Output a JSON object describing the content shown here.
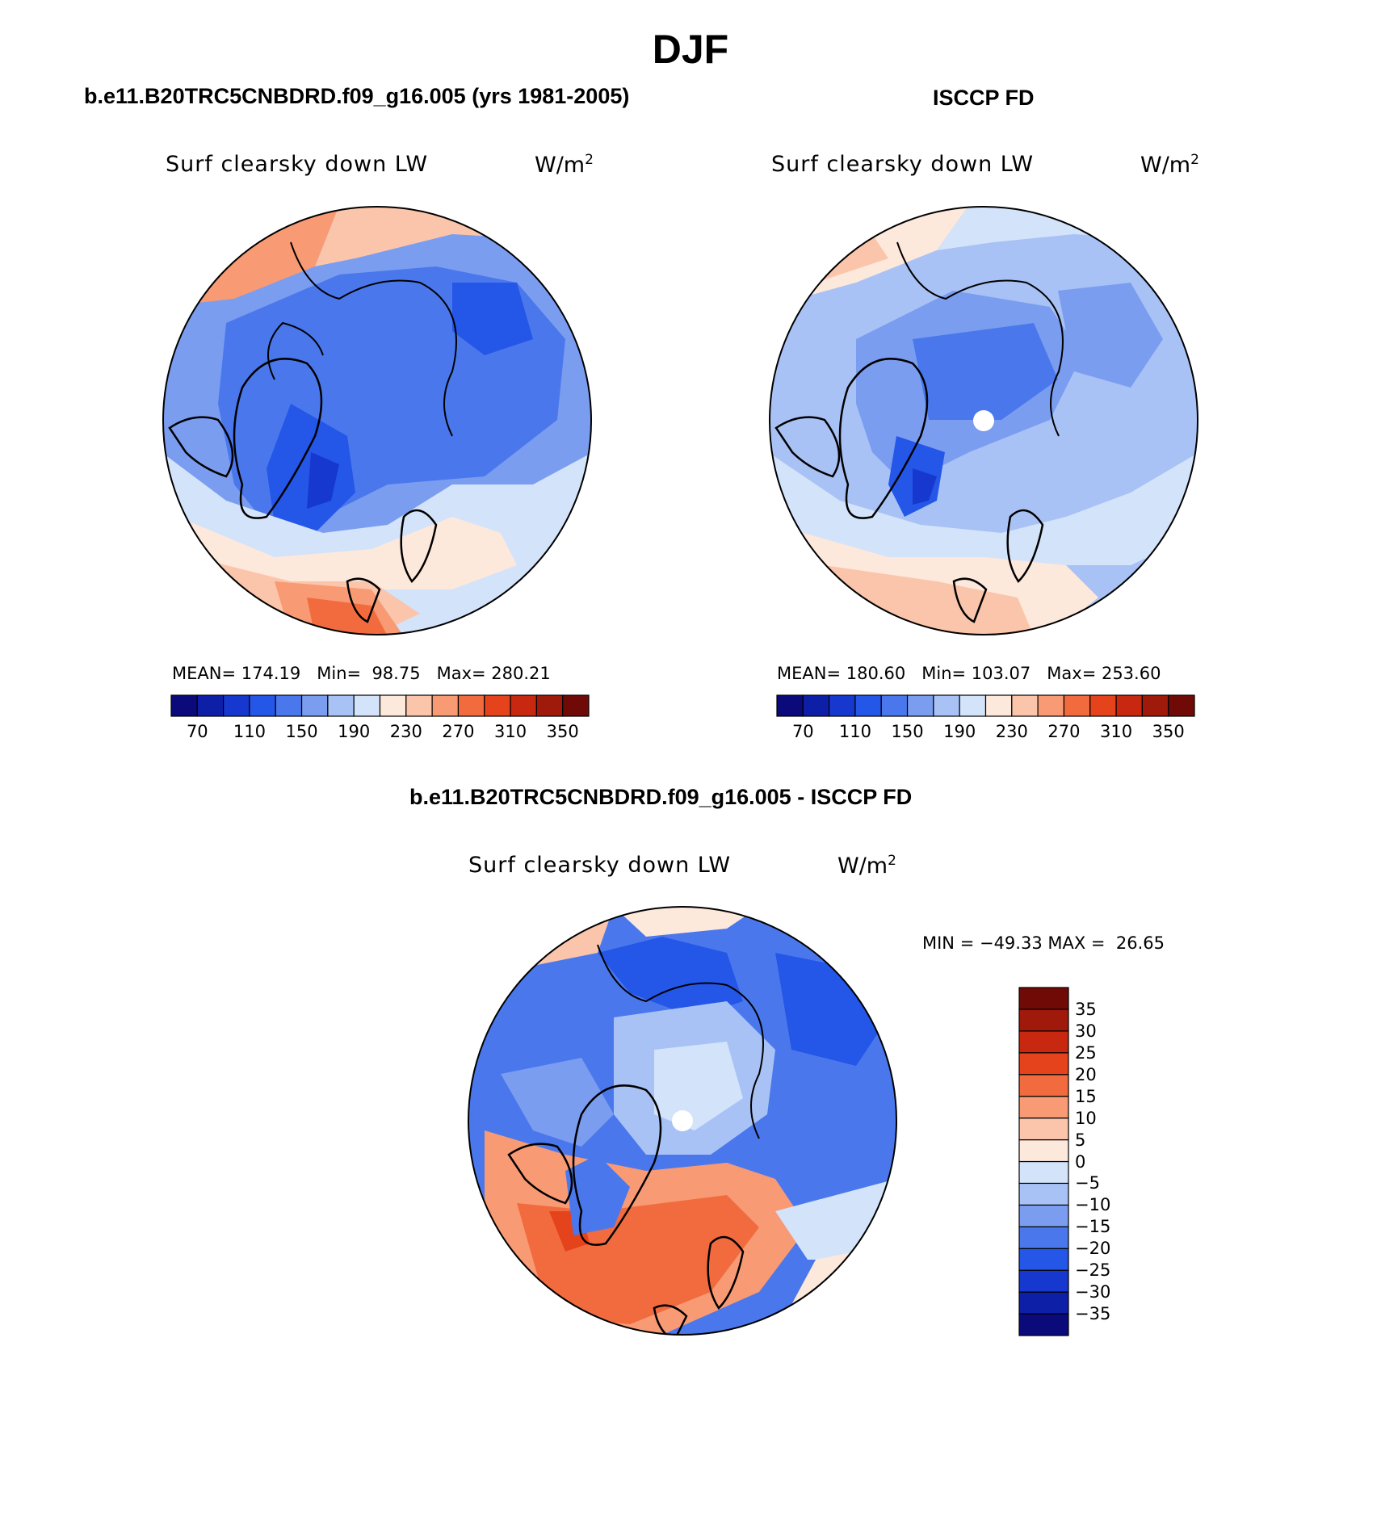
{
  "title": "DJF",
  "panels": [
    {
      "title": "b.e11.B20TRC5CNBDRD.f09_g16.005 (yrs 1981-2005)",
      "variable": "Surf clearsky down LW",
      "units_base": "W/m",
      "units_sup": "2",
      "stats": "MEAN= 174.19   Min=  98.75   Max= 280.21"
    },
    {
      "title": "ISCCP FD",
      "variable": "Surf clearsky down LW",
      "units_base": "W/m",
      "units_sup": "2",
      "stats": "MEAN= 180.60   Min= 103.07   Max= 253.60"
    },
    {
      "title": "b.e11.B20TRC5CNBDRD.f09_g16.005 - ISCCP FD",
      "variable": "Surf clearsky down LW",
      "units_base": "W/m",
      "units_sup": "2",
      "stats": "MIN = −49.33 MAX =  26.65"
    }
  ],
  "colorbar": {
    "colors": [
      "#0a0a7a",
      "#0d1fa6",
      "#1738cf",
      "#2456e8",
      "#4a78ec",
      "#7b9df0",
      "#a9c2f5",
      "#d3e3fa",
      "#fde8dc",
      "#fbc5ab",
      "#f89a74",
      "#f26b3f",
      "#e4431b",
      "#c82810",
      "#9f1a0a",
      "#6f0a06"
    ],
    "labels": [
      "70",
      "110",
      "150",
      "190",
      "230",
      "270",
      "310",
      "350"
    ]
  },
  "diff_colorbar": {
    "colors": [
      "#0a0a7a",
      "#0d1fa6",
      "#1738cf",
      "#2456e8",
      "#4a78ec",
      "#7b9df0",
      "#a9c2f5",
      "#d3e3fa",
      "#fde8dc",
      "#fbc5ab",
      "#f89a74",
      "#f26b3f",
      "#e4431b",
      "#c82810",
      "#9f1a0a",
      "#6f0a06"
    ],
    "labels": [
      "35",
      "30",
      "25",
      "20",
      "15",
      "10",
      "5",
      "0",
      "−5",
      "−10",
      "−15",
      "−20",
      "−25",
      "−30",
      "−35"
    ]
  }
}
